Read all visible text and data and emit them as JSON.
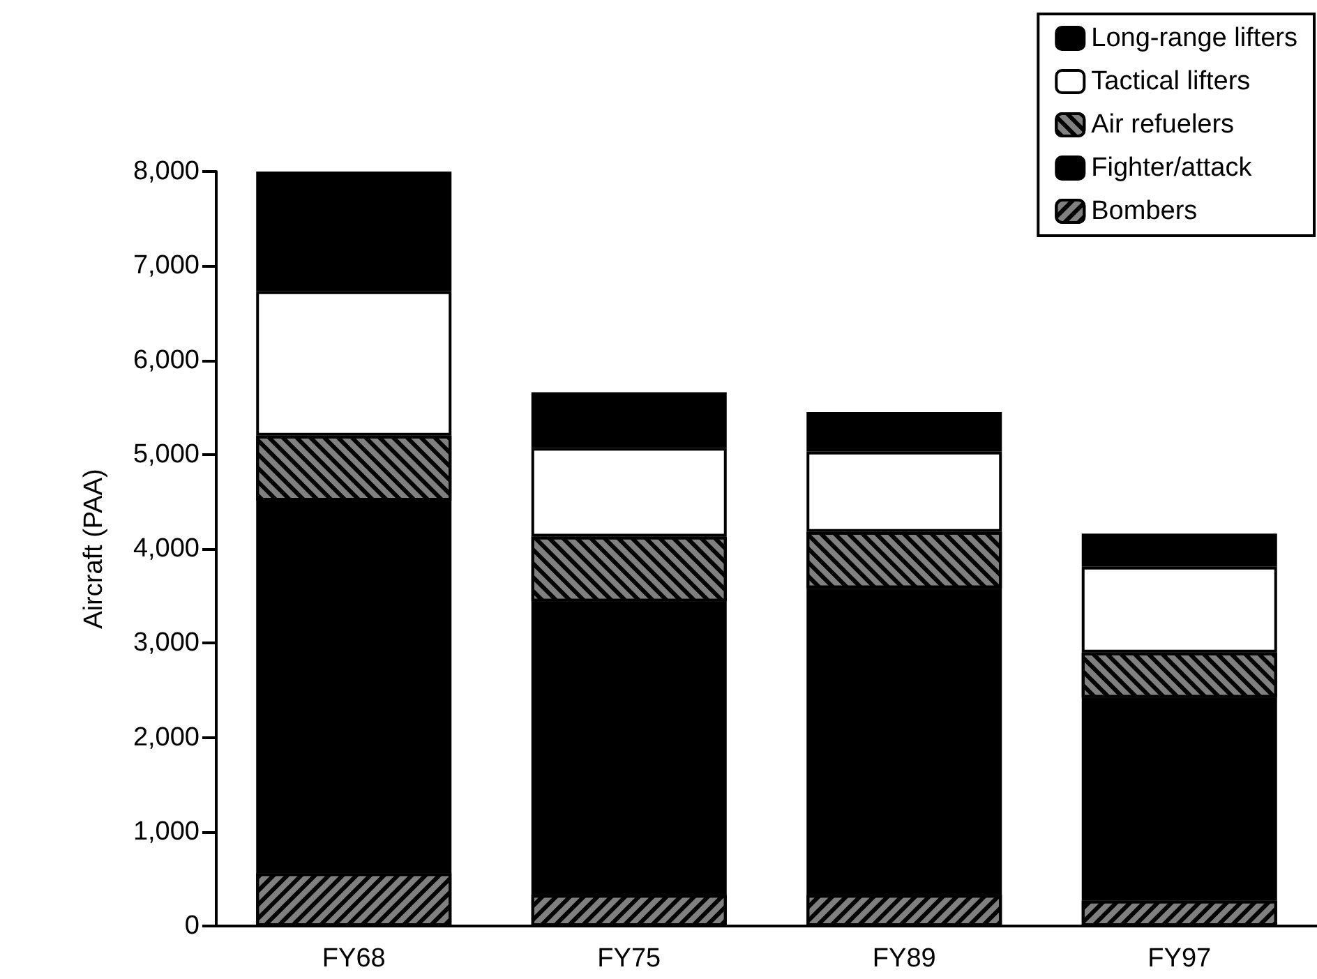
{
  "chart_data": {
    "type": "bar",
    "stacked": true,
    "ylabel": "Aircraft (PAA)",
    "categories": [
      "FY68",
      "FY75",
      "FY89",
      "FY97"
    ],
    "series": [
      {
        "name": "Bombers",
        "color": "#808080",
        "values": [
          560,
          330,
          330,
          270
        ]
      },
      {
        "name": "Fighter/attack",
        "color": "#000000",
        "values": [
          3950,
          3110,
          3250,
          2150
        ]
      },
      {
        "name": "Air refuelers",
        "color": "#808080",
        "values": [
          690,
          690,
          600,
          480
        ]
      },
      {
        "name": "Tactical lifters",
        "color": "#ffffff",
        "values": [
          1530,
          940,
          850,
          910
        ]
      },
      {
        "name": "Long-range lifters",
        "color": "#000000",
        "values": [
          1270,
          590,
          420,
          350
        ]
      }
    ],
    "ylim": [
      0,
      8000
    ],
    "yticks": [
      {
        "value": 0,
        "label": "0"
      },
      {
        "value": 1000,
        "label": "1,000"
      },
      {
        "value": 2000,
        "label": "2,000"
      },
      {
        "value": 3000,
        "label": "3,000"
      },
      {
        "value": 4000,
        "label": "4,000"
      },
      {
        "value": 5000,
        "label": "5,000"
      },
      {
        "value": 6000,
        "label": "6,000"
      },
      {
        "value": 7000,
        "label": "7,000"
      },
      {
        "value": 8000,
        "label": "8,000"
      }
    ],
    "grid": false,
    "legend": "top right"
  }
}
